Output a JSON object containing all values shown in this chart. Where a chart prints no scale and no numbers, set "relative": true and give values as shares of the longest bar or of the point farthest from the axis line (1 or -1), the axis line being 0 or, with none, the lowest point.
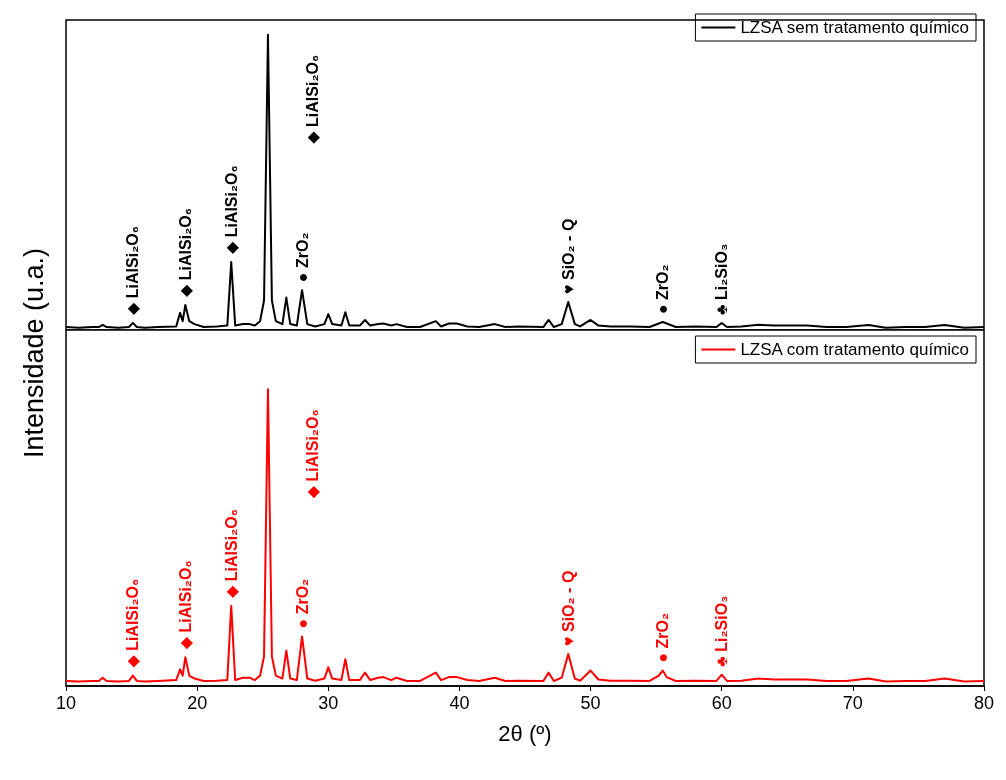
{
  "chart_data": [
    {
      "type": "line",
      "ylabel": "Intensidade (u.a.)",
      "relative": true,
      "xlim": [
        10,
        80
      ],
      "xticks": [
        10,
        20,
        30,
        40,
        50,
        60,
        70,
        80
      ],
      "tick_labels": false,
      "legend": "top right",
      "grid": false,
      "marker": "none",
      "line_style": "solid",
      "x": [
        10,
        11,
        12,
        12.5,
        12.8,
        13.1,
        14,
        14.8,
        15.1,
        15.4,
        16,
        17,
        18.4,
        18.7,
        18.9,
        19.1,
        19.4,
        19.8,
        20.5,
        21.5,
        22.3,
        22.6,
        22.9,
        23.5,
        24,
        24.4,
        24.8,
        25.1,
        25.4,
        25.7,
        26,
        26.5,
        26.8,
        27.1,
        27.6,
        28,
        28.4,
        29,
        29.7,
        30,
        30.3,
        31,
        31.3,
        31.6,
        32.4,
        32.8,
        33.2,
        33.8,
        34.2,
        34.8,
        35.2,
        36,
        37,
        38.2,
        38.6,
        39.2,
        39.8,
        40.6,
        41.5,
        42.7,
        43.5,
        44.5,
        46.4,
        46.8,
        47.2,
        47.8,
        48.3,
        48.8,
        49.2,
        50,
        50.6,
        51.5,
        53,
        54.5,
        55.2,
        55.5,
        55.8,
        56.5,
        58,
        59.6,
        60,
        60.4,
        61.5,
        62.8,
        64,
        65.3,
        66.5,
        68,
        69.5,
        71.2,
        72.5,
        74,
        75.5,
        77,
        78.5,
        80
      ],
      "series": [
        {
          "name": "LZSA sem tratamento químico",
          "color": "#000000",
          "values": [
            0.01,
            0.008,
            0.01,
            0.01,
            0.017,
            0.01,
            0.008,
            0.01,
            0.024,
            0.01,
            0.008,
            0.01,
            0.012,
            0.058,
            0.03,
            0.085,
            0.03,
            0.02,
            0.01,
            0.012,
            0.015,
            0.23,
            0.015,
            0.02,
            0.02,
            0.015,
            0.03,
            0.1,
            1,
            0.1,
            0.03,
            0.02,
            0.11,
            0.02,
            0.015,
            0.135,
            0.02,
            0.012,
            0.02,
            0.054,
            0.02,
            0.015,
            0.06,
            0.015,
            0.015,
            0.034,
            0.015,
            0.02,
            0.022,
            0.015,
            0.02,
            0.01,
            0.01,
            0.03,
            0.012,
            0.022,
            0.022,
            0.012,
            0.01,
            0.02,
            0.01,
            0.012,
            0.01,
            0.034,
            0.01,
            0.02,
            0.095,
            0.02,
            0.012,
            0.034,
            0.015,
            0.012,
            0.012,
            0.01,
            0.022,
            0.027,
            0.022,
            0.01,
            0.012,
            0.01,
            0.024,
            0.01,
            0.012,
            0.018,
            0.015,
            0.015,
            0.015,
            0.01,
            0.01,
            0.017,
            0.008,
            0.01,
            0.01,
            0.017,
            0.008,
            0.01
          ]
        }
      ],
      "annotations": [
        {
          "text": "◆ LiAlSi₂O₆",
          "x": 15.1,
          "y": 0.024
        },
        {
          "text": "◆ LiAlSi₂O₆",
          "x": 19.1,
          "y": 0.085
        },
        {
          "text": "◆ LiAlSi₂O₆",
          "x": 22.6,
          "y": 0.23
        },
        {
          "text": "◆ LiAlSi₂O₆",
          "x": 25.4,
          "y": 1
        },
        {
          "text": "● ZrO₂",
          "x": 28,
          "y": 0.135
        },
        {
          "text": "♥ SiO₂ - Q",
          "x": 48.3,
          "y": 0.095
        },
        {
          "text": "● ZrO₂",
          "x": 55.5,
          "y": 0.027
        },
        {
          "text": "♣ Li₂SiO₃",
          "x": 60,
          "y": 0.024
        }
      ]
    },
    {
      "type": "line",
      "xlabel": "2θ (º)",
      "relative": true,
      "xlim": [
        10,
        80
      ],
      "xticks": [
        10,
        20,
        30,
        40,
        50,
        60,
        70,
        80
      ],
      "tick_labels": "x",
      "legend": "top right",
      "grid": false,
      "marker": "none",
      "line_style": "solid",
      "x": [
        10,
        11,
        12,
        12.5,
        12.8,
        13.1,
        14,
        14.8,
        15.1,
        15.4,
        16,
        17,
        18.4,
        18.7,
        18.9,
        19.1,
        19.4,
        19.8,
        20.5,
        21.5,
        22.3,
        22.6,
        22.9,
        23.5,
        24,
        24.4,
        24.8,
        25.1,
        25.4,
        25.7,
        26,
        26.5,
        26.8,
        27.1,
        27.6,
        28,
        28.4,
        29,
        29.7,
        30,
        30.3,
        31,
        31.3,
        31.6,
        32.4,
        32.8,
        33.2,
        33.8,
        34.2,
        34.8,
        35.2,
        36,
        37,
        38.2,
        38.6,
        39.2,
        39.8,
        40.6,
        41.5,
        42.7,
        43.5,
        44.5,
        46.4,
        46.8,
        47.2,
        47.8,
        48.3,
        48.8,
        49.2,
        50,
        50.6,
        51.5,
        53,
        54.5,
        55.2,
        55.5,
        55.8,
        56.5,
        58,
        59.6,
        60,
        60.4,
        61.5,
        62.8,
        64,
        65.3,
        66.5,
        68,
        69.5,
        71.2,
        72.5,
        74,
        75.5,
        77,
        78.5,
        80
      ],
      "series": [
        {
          "name": "LZSA com tratamento químico",
          "color": "#ff0000",
          "values": [
            0.017,
            0.015,
            0.017,
            0.017,
            0.028,
            0.017,
            0.015,
            0.017,
            0.035,
            0.017,
            0.015,
            0.017,
            0.02,
            0.056,
            0.035,
            0.097,
            0.035,
            0.025,
            0.017,
            0.018,
            0.02,
            0.27,
            0.02,
            0.028,
            0.028,
            0.02,
            0.035,
            0.1,
            1,
            0.1,
            0.035,
            0.025,
            0.12,
            0.025,
            0.02,
            0.167,
            0.025,
            0.018,
            0.025,
            0.063,
            0.025,
            0.02,
            0.09,
            0.02,
            0.02,
            0.045,
            0.02,
            0.028,
            0.03,
            0.02,
            0.028,
            0.017,
            0.017,
            0.045,
            0.02,
            0.03,
            0.03,
            0.02,
            0.017,
            0.028,
            0.017,
            0.018,
            0.017,
            0.045,
            0.017,
            0.028,
            0.108,
            0.025,
            0.018,
            0.052,
            0.022,
            0.018,
            0.018,
            0.017,
            0.035,
            0.052,
            0.03,
            0.017,
            0.018,
            0.017,
            0.038,
            0.017,
            0.018,
            0.025,
            0.022,
            0.022,
            0.022,
            0.017,
            0.017,
            0.025,
            0.015,
            0.017,
            0.017,
            0.025,
            0.015,
            0.017
          ]
        }
      ],
      "annotations": [
        {
          "text": "◆ LiAlSi₂O₆",
          "x": 15.1,
          "y": 0.035
        },
        {
          "text": "◆ LiAlSi₂O₆",
          "x": 19.1,
          "y": 0.097
        },
        {
          "text": "◆ LiAlSi₂O₆",
          "x": 22.6,
          "y": 0.27
        },
        {
          "text": "◆ LiAlSi₂O₆",
          "x": 25.4,
          "y": 1
        },
        {
          "text": "● ZrO₂",
          "x": 28,
          "y": 0.167
        },
        {
          "text": "♥ SiO₂ - Q",
          "x": 48.3,
          "y": 0.108
        },
        {
          "text": "● ZrO₂",
          "x": 55.5,
          "y": 0.052
        },
        {
          "text": "♣ Li₂SiO₃",
          "x": 60,
          "y": 0.038
        }
      ]
    }
  ]
}
